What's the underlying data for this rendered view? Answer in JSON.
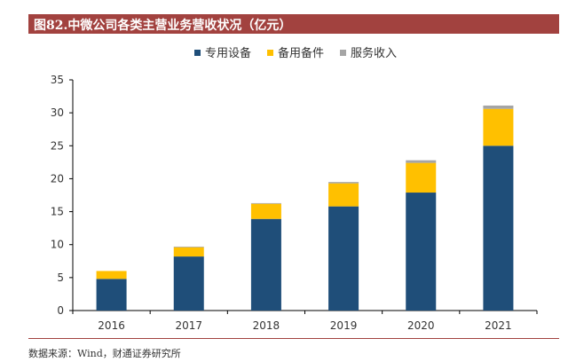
{
  "header": {
    "title": "图82.中微公司各类主营业务营收状况（亿元）"
  },
  "footer": {
    "source": "数据来源：Wind，财通证券研究所"
  },
  "colors": {
    "title_bg": "#a2423f",
    "series": [
      "#1f4e79",
      "#ffc000",
      "#a5a5a5"
    ]
  },
  "chart_data": {
    "type": "bar",
    "stacked": true,
    "title": "",
    "xlabel": "",
    "ylabel": "",
    "categories": [
      "2016",
      "2017",
      "2018",
      "2019",
      "2020",
      "2021"
    ],
    "series": [
      {
        "name": "专用设备",
        "values": [
          4.8,
          8.2,
          13.9,
          15.8,
          17.9,
          25.0
        ]
      },
      {
        "name": "备用备件",
        "values": [
          1.2,
          1.4,
          2.3,
          3.5,
          4.5,
          5.6
        ]
      },
      {
        "name": "服务收入",
        "values": [
          0.0,
          0.1,
          0.1,
          0.2,
          0.4,
          0.5
        ]
      }
    ],
    "ylim": [
      0,
      35
    ],
    "yticks": [
      0,
      5,
      10,
      15,
      20,
      25,
      30,
      35
    ],
    "grid": false,
    "legend": "top-center"
  }
}
